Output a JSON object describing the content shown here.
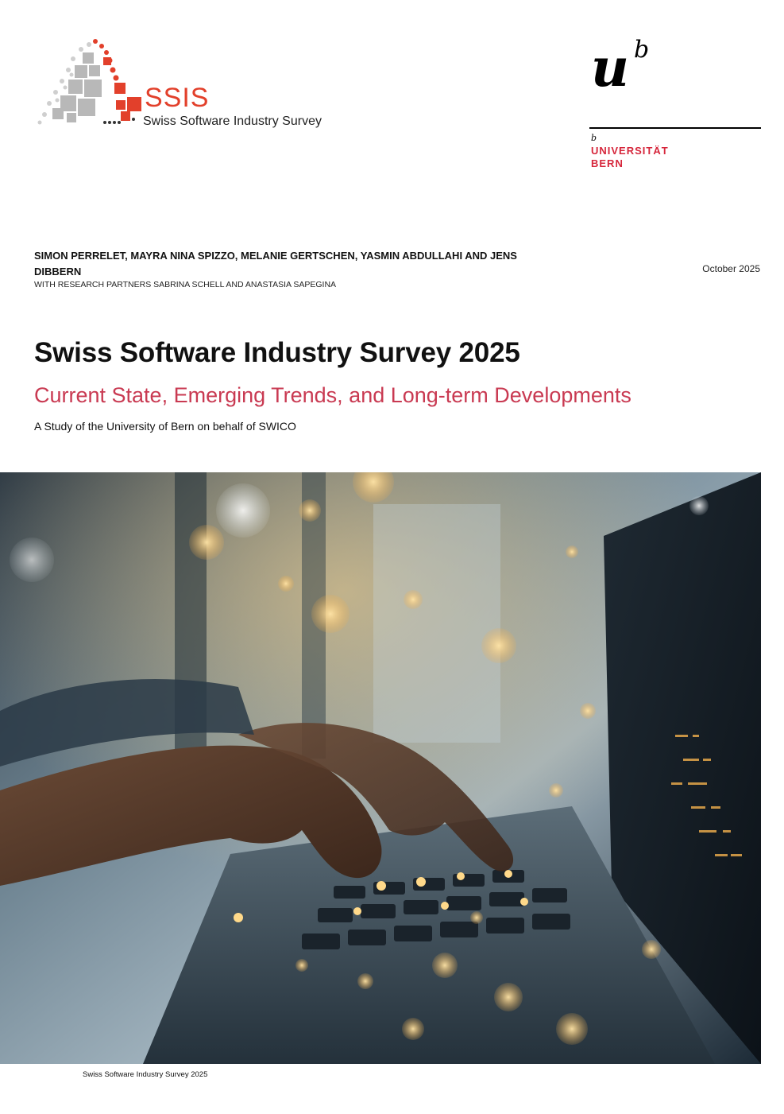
{
  "logo": {
    "name": "SSIS",
    "tagline": "Swiss Software Industry Survey"
  },
  "university": {
    "logo_letters": "u",
    "logo_superscript": "b",
    "small_b": "b",
    "name": "UNIVERSITÄT\nBERN"
  },
  "authors": "SIMON PERRELET, MAYRA NINA SPIZZO, MELANIE GERTSCHEN, YASMIN ABDULLAHI AND JENS DIBBERN",
  "research_partners": "WITH RESEARCH PARTNERS SABRINA SCHELL AND ANASTASIA SAPEGINA",
  "date": "October 2025",
  "title": "Swiss Software Industry Survey 2025",
  "subtitle": "Current State, Emerging Trends, and Long-term Developments",
  "study_line": "A Study of the University of Bern on behalf of SWICO",
  "footer": "Swiss Software Industry Survey 2025",
  "colors": {
    "logo_red": "#e2402b",
    "uni_red": "#d6263b",
    "subtitle_red": "#c93a52"
  }
}
